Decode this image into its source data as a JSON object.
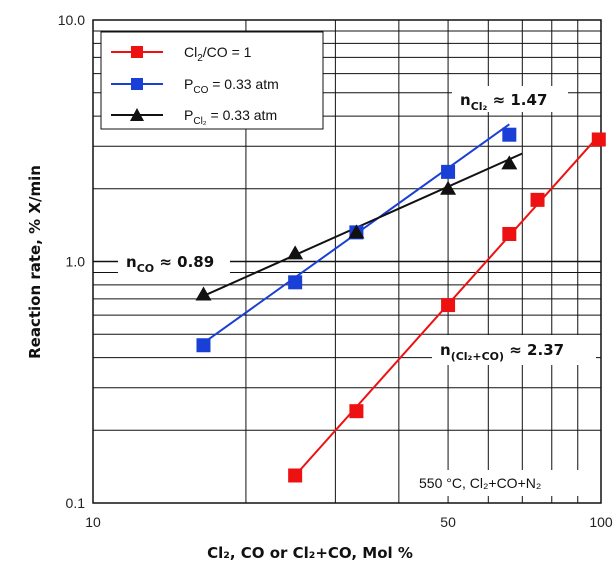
{
  "chart_data": {
    "type": "scatter",
    "x_scale": "log",
    "y_scale": "log",
    "xlim": [
      10,
      100
    ],
    "ylim": [
      0.1,
      10
    ],
    "grid": true,
    "xlabel": "Cl₂, CO or Cl₂+CO, Mol %",
    "ylabel": "Reaction rate, % X/min",
    "x_ticks": [
      {
        "value": 10,
        "label": "10"
      },
      {
        "value": 50,
        "label": "50"
      },
      {
        "value": 100,
        "label": "100"
      }
    ],
    "y_ticks": [
      {
        "value": 0.1,
        "label": "0.1"
      },
      {
        "value": 1,
        "label": "1.0"
      },
      {
        "value": 10,
        "label": "10.0"
      }
    ],
    "legend_position": "top-left",
    "series": [
      {
        "name": "Cl₂/CO = 1",
        "name_parts": [
          "Cl",
          "2",
          "/CO = 1"
        ],
        "color": "#ee1111",
        "marker": "square",
        "points": [
          [
            25,
            0.13
          ],
          [
            33,
            0.24
          ],
          [
            50,
            0.66
          ],
          [
            66,
            1.3
          ],
          [
            75,
            1.8
          ],
          [
            99,
            3.2
          ]
        ],
        "fit": [
          [
            25,
            0.13
          ],
          [
            100,
            3.4
          ]
        ]
      },
      {
        "name": "P_CO = 0.33 atm",
        "name_parts": [
          "P",
          "CO",
          " = 0.33 atm"
        ],
        "color": "#1a3fd6",
        "marker": "square",
        "points": [
          [
            16.5,
            0.45
          ],
          [
            25,
            0.82
          ],
          [
            33,
            1.32
          ],
          [
            50,
            2.35
          ],
          [
            66,
            3.35
          ]
        ],
        "fit": [
          [
            16.5,
            0.46
          ],
          [
            66,
            3.7
          ]
        ]
      },
      {
        "name": "P_Cl₂ = 0.33 atm",
        "name_parts": [
          "P",
          "Cl₂",
          " = 0.33 atm"
        ],
        "color": "#111111",
        "marker": "triangle",
        "points": [
          [
            16.5,
            0.73
          ],
          [
            25,
            1.08
          ],
          [
            33,
            1.32
          ],
          [
            50,
            2.0
          ],
          [
            66,
            2.55
          ]
        ],
        "fit": [
          [
            16.5,
            0.72
          ],
          [
            70,
            2.8
          ]
        ]
      }
    ],
    "annotations": [
      {
        "id": "n_cl2",
        "main": "n",
        "sub": "Cl₂",
        "tail": " ≈ 1.47"
      },
      {
        "id": "n_co",
        "main": "n",
        "sub": "CO",
        "tail": " ≈ 0.89"
      },
      {
        "id": "n_mix",
        "main": "n",
        "sub": "(Cl₂+CO)",
        "tail": " ≈ 2.37"
      }
    ],
    "conditions": "550 °C, Cl₂+CO+N₂"
  }
}
